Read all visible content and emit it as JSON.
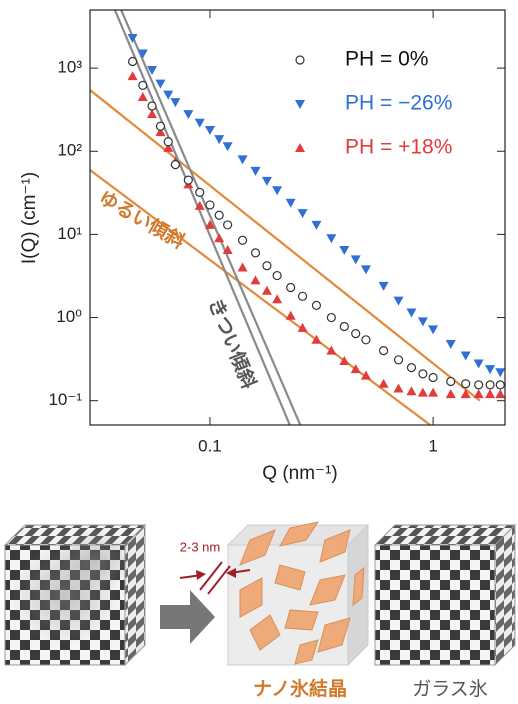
{
  "chart_data": {
    "type": "scatter",
    "x_label": "Q (nm⁻¹)",
    "y_label": "I(Q) (cm⁻¹)",
    "log_x": true,
    "log_y": true,
    "xlim": [
      0.029,
      2.1
    ],
    "ylim": [
      0.051,
      5000
    ],
    "xticks": [
      0.1,
      1
    ],
    "yticks": [
      {
        "value": 0.1,
        "label": "10⁻¹"
      },
      {
        "value": 1,
        "label": "10⁰"
      },
      {
        "value": 10,
        "label": "10¹"
      },
      {
        "value": 100,
        "label": "10²"
      },
      {
        "value": 1000,
        "label": "10³"
      }
    ],
    "x": [
      0.045,
      0.05,
      0.055,
      0.06,
      0.065,
      0.07,
      0.08,
      0.09,
      0.1,
      0.11,
      0.12,
      0.14,
      0.16,
      0.18,
      0.2,
      0.23,
      0.26,
      0.3,
      0.35,
      0.4,
      0.45,
      0.5,
      0.6,
      0.7,
      0.8,
      0.9,
      1,
      1.2,
      1.4,
      1.6,
      1.8,
      2
    ],
    "series": [
      {
        "name": "PH = 0%",
        "color": "#333333",
        "marker": "circle",
        "values": [
          1200,
          620,
          350,
          200,
          130,
          69,
          45,
          32,
          22.6,
          17,
          13,
          8.5,
          6,
          4.2,
          3.2,
          2.3,
          1.8,
          1.4,
          1.0,
          0.78,
          0.64,
          0.54,
          0.4,
          0.31,
          0.25,
          0.21,
          0.19,
          0.17,
          0.16,
          0.155,
          0.155,
          0.155
        ]
      },
      {
        "name": "PH = −26%",
        "color": "#2f6fd6",
        "marker": "triangle-down",
        "values": [
          2300,
          1500,
          950,
          650,
          480,
          390,
          280,
          220,
          180,
          140,
          115,
          80,
          58,
          44,
          34,
          24,
          18,
          13,
          9,
          6.5,
          5,
          3.8,
          2.4,
          1.6,
          1.15,
          0.9,
          0.72,
          0.48,
          0.35,
          0.28,
          0.24,
          0.22
        ]
      },
      {
        "name": "PH = +18%",
        "color": "#e03c3c",
        "marker": "triangle-up",
        "values": [
          800,
          450,
          280,
          170,
          110,
          75,
          40,
          22,
          13,
          9,
          6.5,
          4,
          2.8,
          2.1,
          1.66,
          1.05,
          0.75,
          0.54,
          0.4,
          0.3,
          0.24,
          0.2,
          0.16,
          0.14,
          0.13,
          0.125,
          0.125,
          0.12,
          0.12,
          0.12,
          0.12,
          0.12
        ]
      }
    ],
    "fit_lines": [
      {
        "color": "#e08a3c",
        "x": [
          0.029,
          1.62
        ],
        "y": [
          545,
          0.1
        ]
      },
      {
        "color": "#e08a3c",
        "x": [
          0.029,
          0.97
        ],
        "y": [
          59.5,
          0.051
        ]
      },
      {
        "color": "#8a8a8a",
        "x": [
          0.0375,
          0.228
        ],
        "y": [
          5000,
          0.051
        ]
      },
      {
        "color": "#8a8a8a",
        "x": [
          0.04,
          0.254
        ],
        "y": [
          5000,
          0.051
        ]
      }
    ],
    "annotations": [
      {
        "text": "ゆるい傾斜",
        "color": "#d07a2c"
      },
      {
        "text": "きつい傾斜",
        "color": "#555555"
      }
    ]
  },
  "diagram": {
    "dimension_label": "2-3 nm",
    "captions": [
      "ナノ氷結晶",
      "ガラス氷"
    ]
  }
}
